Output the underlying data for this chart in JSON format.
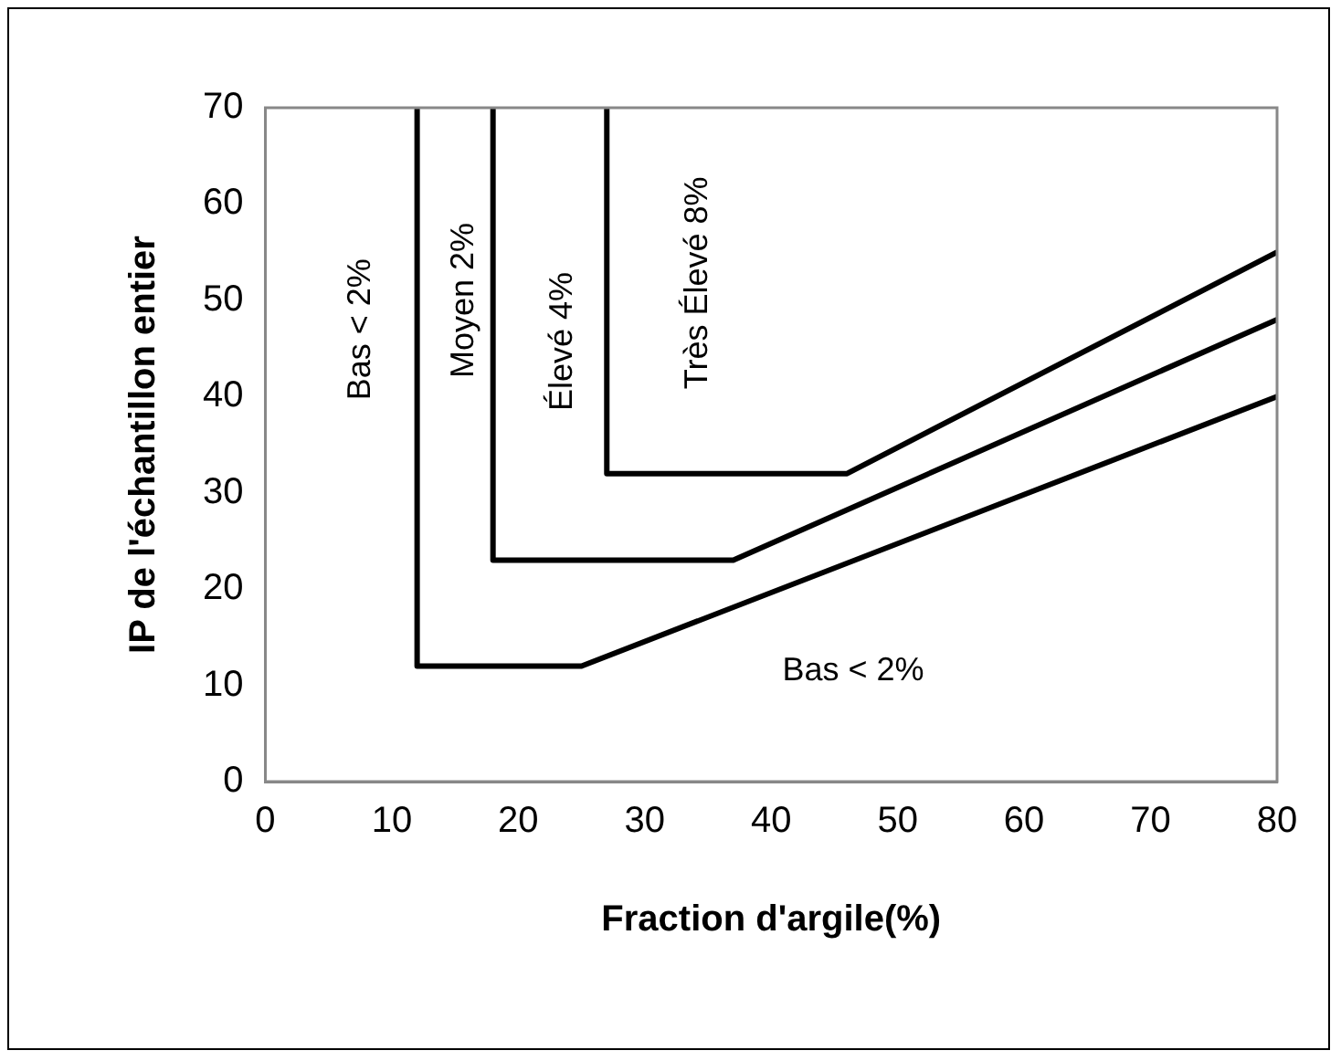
{
  "chart_data": {
    "type": "line",
    "xlabel": "Fraction d'argile(%)",
    "ylabel": "IP de l'échantillon entier",
    "xlim": [
      0,
      80
    ],
    "xticks": [
      0,
      10,
      20,
      30,
      40,
      50,
      60,
      70,
      80
    ],
    "ylim": [
      0,
      70
    ],
    "yticks": [
      0,
      10,
      20,
      30,
      40,
      50,
      60,
      70
    ],
    "grid": false,
    "legend": false,
    "marker": "none",
    "line_style": "solid",
    "series": [
      {
        "color": "#000000",
        "x": [
          12,
          12,
          25,
          80
        ],
        "values": [
          70,
          12,
          12,
          40
        ]
      },
      {
        "color": "#000000",
        "x": [
          18,
          18,
          37,
          80
        ],
        "values": [
          70,
          23,
          23,
          48
        ]
      },
      {
        "color": "#000000",
        "x": [
          27,
          27,
          46,
          80
        ],
        "values": [
          70,
          32,
          32,
          55
        ]
      }
    ],
    "annotations": [
      "Bas < 2%",
      "Moyen 2%",
      "Élevé 4%",
      "Très Élevé 8%",
      "Bas < 2%"
    ]
  }
}
